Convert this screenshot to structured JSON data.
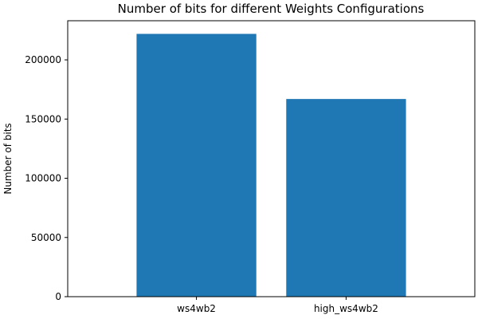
{
  "chart_data": {
    "type": "bar",
    "title": "Number of bits for different Weights Configurations",
    "xlabel": "",
    "ylabel": "Number of bits",
    "categories": [
      "ws4wb2",
      "high_ws4wb2"
    ],
    "values": [
      221950,
      166950
    ],
    "ylim": [
      0,
      233047
    ],
    "yticks": [
      0,
      50000,
      100000,
      150000,
      200000
    ],
    "bar_color": "#1f77b4",
    "grid": false,
    "legend": "none"
  }
}
